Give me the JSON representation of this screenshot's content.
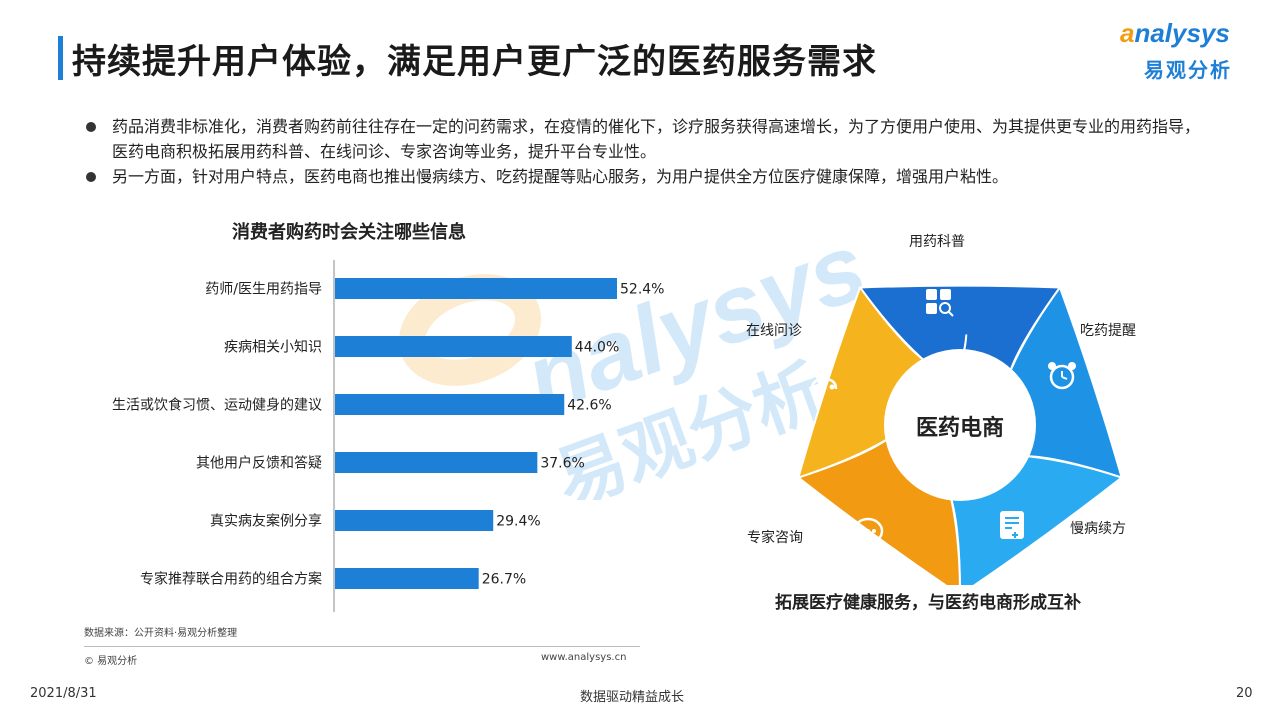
{
  "header": {
    "title": "持续提升用户体验，满足用户更广泛的医药服务需求",
    "logo_en_a": "a",
    "logo_en_rest": "nalysys",
    "logo_cn": "易观分析"
  },
  "bullets": [
    "药品消费非标准化，消费者购药前往往存在一定的问药需求，在疫情的催化下，诊疗服务获得高速增长，为了方便用户使用、为其提供更专业的用药指导，医药电商积极拓展用药科普、在线问诊、专家咨询等业务，提升平台专业性。",
    "另一方面，针对用户特点，医药电商也推出慢病续方、吃药提醒等贴心服务，为用户提供全方位医疗健康保障，增强用户粘性。"
  ],
  "chart_data": {
    "type": "bar",
    "orientation": "horizontal",
    "title": "消费者购药时会关注哪些信息",
    "categories": [
      "药师/医生用药指导",
      "疾病相关小知识",
      "生活或饮食习惯、运动健身的建议",
      "其他用户反馈和答疑",
      "真实病友案例分享",
      "专家推荐联合用药的组合方案"
    ],
    "values": [
      52.4,
      44.0,
      42.6,
      37.6,
      29.4,
      26.7
    ],
    "value_labels": [
      "52.4%",
      "44.0%",
      "42.6%",
      "37.6%",
      "29.4%",
      "26.7%"
    ],
    "unit": "%",
    "xlim": [
      0,
      60
    ],
    "color": "#1e7fd6",
    "grid": false
  },
  "diagram": {
    "center": "医药电商",
    "segments": [
      {
        "label": "用药科普",
        "icon": "apps-grid-icon",
        "color": "#1a6fd0"
      },
      {
        "label": "吃药提醒",
        "icon": "alarm-clock-icon",
        "color": "#1e93e6"
      },
      {
        "label": "慢病续方",
        "icon": "prescription-doc-icon",
        "color": "#2aaaf0"
      },
      {
        "label": "专家咨询",
        "icon": "chat-bubble-icon",
        "color": "#f29a12"
      },
      {
        "label": "在线问诊",
        "icon": "doctor-stethoscope-icon",
        "color": "#f5b41e"
      }
    ],
    "caption": "拓展医疗健康服务，与医药电商形成互补"
  },
  "footer": {
    "source": "数据来源：公开资料·易观分析整理",
    "copyright": "© 易观分析",
    "website": "www.analysys.cn",
    "date": "2021/8/31",
    "slogan": "数据驱动精益成长",
    "page": "20"
  }
}
